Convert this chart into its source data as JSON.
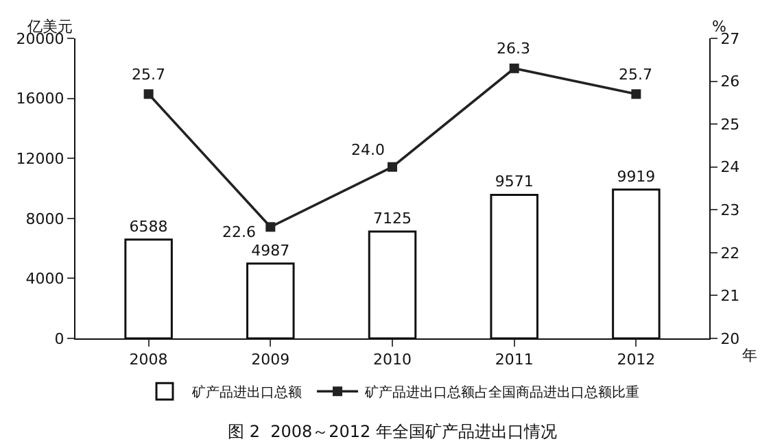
{
  "chart_data": {
    "type": "bar",
    "title": "图 2  2008～2012 年全国矿产品进出口情况",
    "categories": [
      "2008",
      "2009",
      "2010",
      "2011",
      "2012"
    ],
    "xlabel": "年",
    "ylabel": "亿美元",
    "y2label": "%",
    "series": [
      {
        "name": "矿产品进出口总额",
        "type": "bar",
        "color": "#ffffff",
        "values": [
          6588,
          4987,
          7125,
          9571,
          9919
        ]
      },
      {
        "name": "矿产品进出口总额占全国商品进出口总额比重",
        "type": "line",
        "axis": "y2",
        "color": "#222222",
        "values": [
          25.7,
          22.6,
          24.0,
          26.3,
          25.7
        ],
        "value_labels": [
          "25.7",
          "22.6",
          "24.0",
          "26.3",
          "25.7"
        ]
      }
    ],
    "data_labels": true,
    "marker": "square",
    "line_style": "solid",
    "ylim": [
      0,
      20000
    ],
    "yticks": [
      0,
      4000,
      8000,
      12000,
      16000,
      20000
    ],
    "y2lim": [
      20,
      27
    ],
    "y2ticks": [
      20,
      21,
      22,
      23,
      24,
      25,
      26,
      27
    ],
    "legend": "bottom"
  }
}
